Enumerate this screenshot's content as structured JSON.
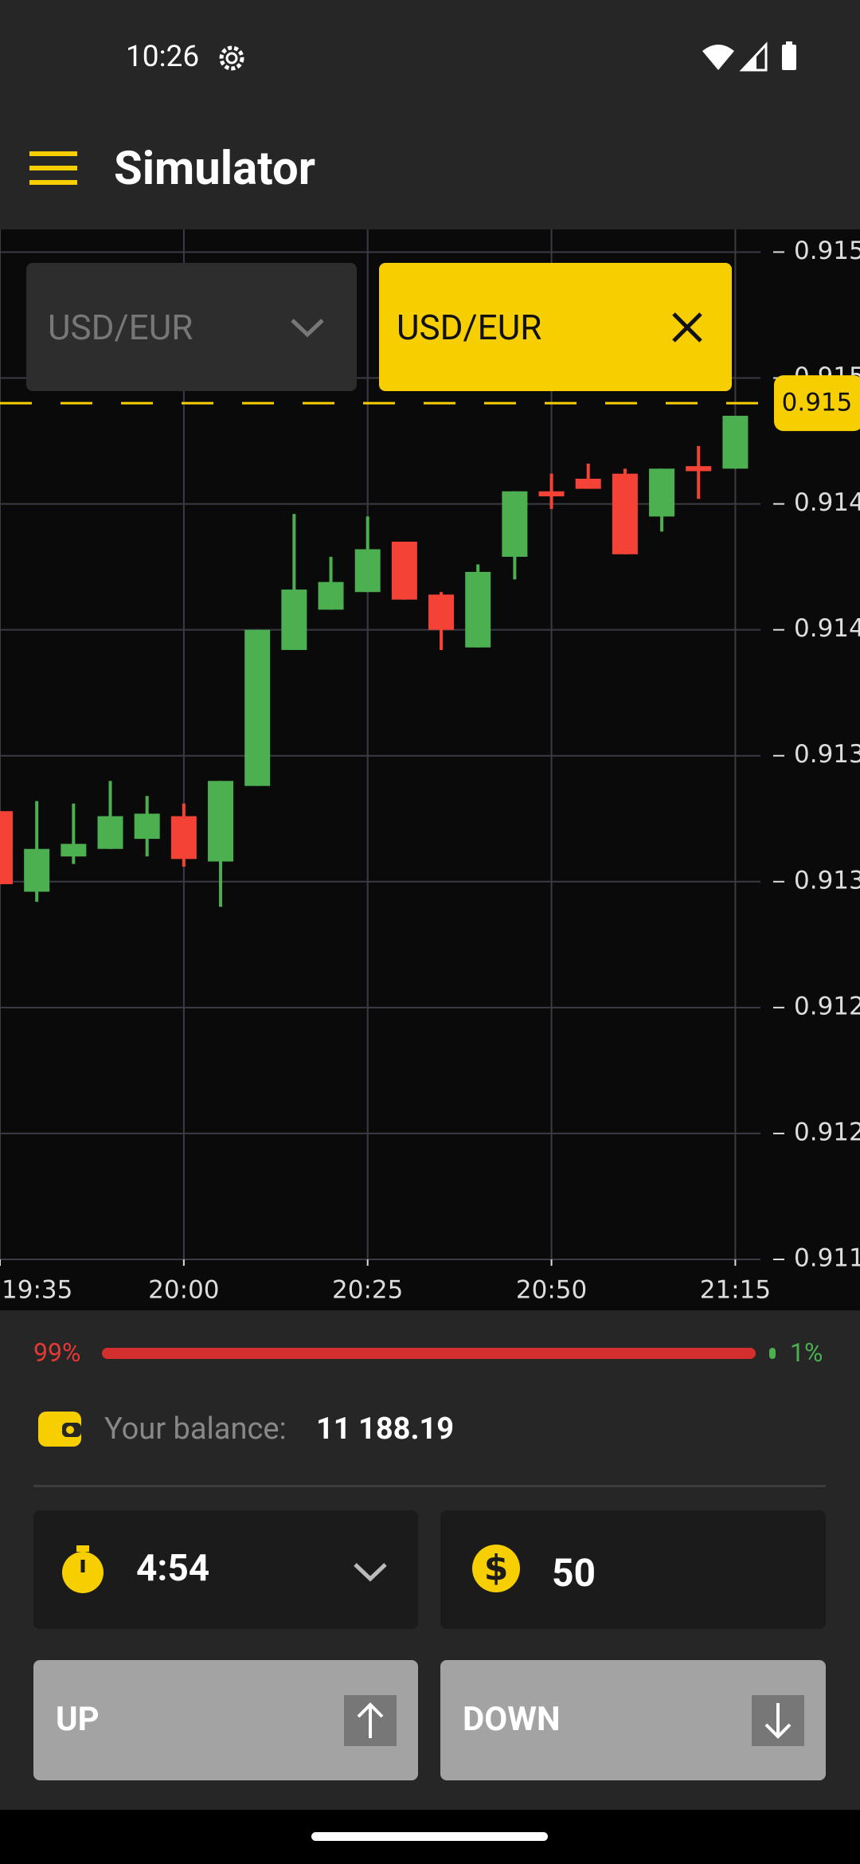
{
  "status_bar": {
    "time": "10:26"
  },
  "app_bar": {
    "title": "Simulator"
  },
  "pair_selector": {
    "current": "USD/EUR",
    "active": "USD/EUR"
  },
  "chart_data": {
    "type": "candlestick",
    "categories": [
      "19:35",
      null,
      null,
      null,
      null,
      "20:00",
      null,
      null,
      null,
      null,
      "20:25",
      null,
      null,
      null,
      null,
      "20:50",
      null,
      null,
      null,
      null,
      "21:15"
    ],
    "open": [
      0.91298,
      0.91266,
      0.9128,
      0.91283,
      0.91287,
      0.91296,
      0.91278,
      0.91308,
      0.91362,
      0.91378,
      0.91385,
      0.91405,
      0.91384,
      0.91363,
      0.91399,
      0.91425,
      0.9143,
      0.91432,
      0.91415,
      0.91435,
      0.91434
    ],
    "high": [
      0.91298,
      0.91302,
      0.91301,
      0.9131,
      0.91304,
      0.91301,
      0.9131,
      0.9137,
      0.91416,
      0.91399,
      0.91415,
      0.91405,
      0.91385,
      0.91396,
      0.91425,
      0.91432,
      0.91436,
      0.91434,
      0.91434,
      0.91443,
      0.91455
    ],
    "low": [
      0.91269,
      0.91262,
      0.91277,
      0.91283,
      0.9128,
      0.91276,
      0.9126,
      0.91308,
      0.91362,
      0.91378,
      0.91385,
      0.91382,
      0.91362,
      0.91363,
      0.9139,
      0.91418,
      0.91426,
      0.914,
      0.91409,
      0.91422,
      0.91434
    ],
    "close": [
      0.91269,
      0.91283,
      0.91285,
      0.91296,
      0.91297,
      0.91279,
      0.9131,
      0.9137,
      0.91386,
      0.91389,
      0.91402,
      0.91382,
      0.9137,
      0.91393,
      0.91425,
      0.91423,
      0.91426,
      0.914,
      0.91434,
      0.91433,
      0.91455
    ],
    "up_color": "#4caf50",
    "down_color": "#f44336",
    "ylim": [
      0.9112,
      0.91529
    ],
    "yticks": [
      {
        "value": 0.9152,
        "label": "0.915"
      },
      {
        "value": 0.9147,
        "label": "0.915"
      },
      {
        "value": 0.9142,
        "label": "0.914"
      },
      {
        "value": 0.9137,
        "label": "0.914"
      },
      {
        "value": 0.9132,
        "label": "0.913"
      },
      {
        "value": 0.9127,
        "label": "0.913"
      },
      {
        "value": 0.9122,
        "label": "0.912"
      },
      {
        "value": 0.9117,
        "label": "0.912"
      },
      {
        "value": 0.9112,
        "label": "0.911"
      }
    ],
    "grid": true,
    "current_price": {
      "value": 0.9146,
      "label": "0.915"
    },
    "price_color": "#f7cf00"
  },
  "sentiment": {
    "down": "99%",
    "up": "1%"
  },
  "balance": {
    "label": "Your balance:",
    "value": "11 188.19"
  },
  "timer": "4:54",
  "amount": "50",
  "buttons": {
    "up": "UP",
    "down": "DOWN"
  }
}
